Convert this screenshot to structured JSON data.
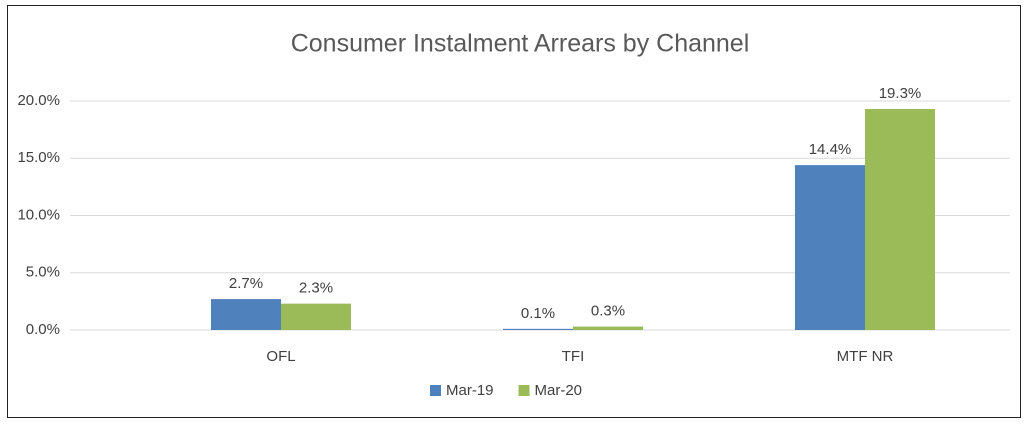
{
  "chart_data": {
    "type": "bar",
    "title": "Consumer Instalment Arrears by Channel",
    "categories": [
      "OFL",
      "TFI",
      "MTF NR"
    ],
    "series": [
      {
        "name": "Mar-19",
        "color": "#4f81bd",
        "values": [
          2.7,
          0.1,
          14.4
        ],
        "value_labels": [
          "2.7%",
          "0.1%",
          "14.4%"
        ]
      },
      {
        "name": "Mar-20",
        "color": "#9bbb59",
        "values": [
          2.3,
          0.3,
          19.3
        ],
        "value_labels": [
          "2.3%",
          "0.3%",
          "19.3%"
        ]
      }
    ],
    "ylim": [
      0,
      20
    ],
    "yticks": [
      {
        "value": 0,
        "label": "0.0%"
      },
      {
        "value": 5,
        "label": "5.0%"
      },
      {
        "value": 10,
        "label": "10.0%"
      },
      {
        "value": 15,
        "label": "15.0%"
      },
      {
        "value": 20,
        "label": "20.0%"
      }
    ],
    "grid": true,
    "legend": "bottom"
  }
}
